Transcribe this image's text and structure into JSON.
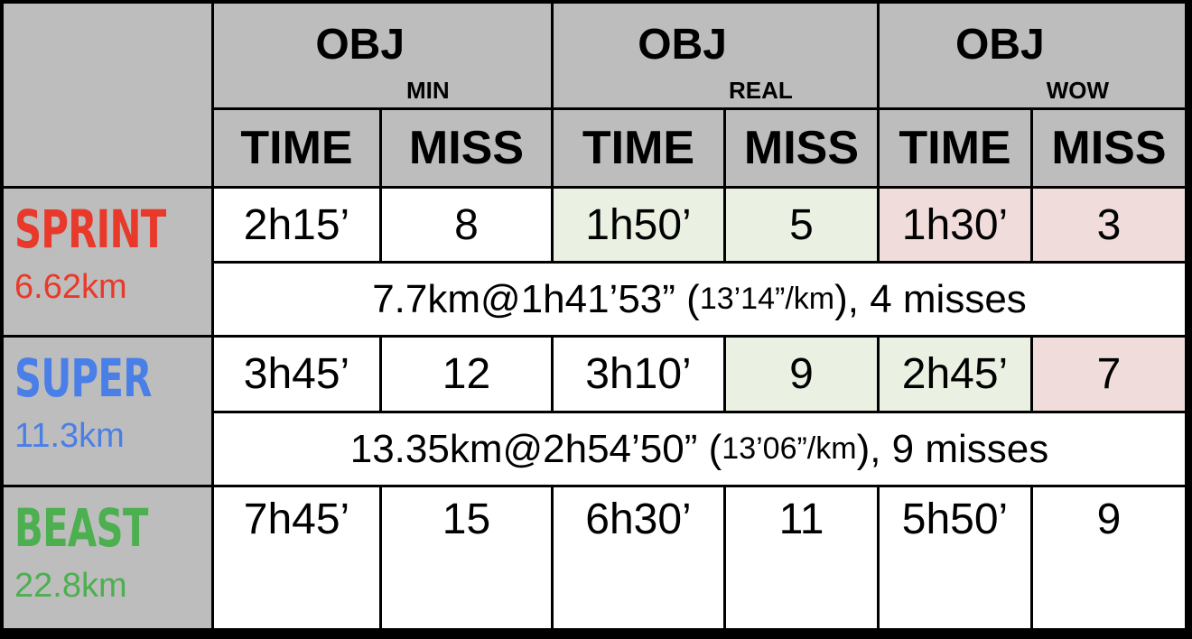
{
  "groups": [
    {
      "main": "OBJ",
      "sub": "MIN"
    },
    {
      "main": "OBJ",
      "sub": "REAL"
    },
    {
      "main": "OBJ",
      "sub": "WOW"
    }
  ],
  "columns": [
    "TIME",
    "MISS",
    "TIME",
    "MISS",
    "TIME",
    "MISS"
  ],
  "races": [
    {
      "name": "SPRINT",
      "distance": "6.62km",
      "color": "#e8392a",
      "cells": [
        "2h15’",
        "8",
        "1h50’",
        "5",
        "1h30’",
        "3"
      ],
      "summary_main": "7.7km@1h41’53” (",
      "summary_pace": "13’14”/km",
      "summary_end": "), 4 misses"
    },
    {
      "name": "SUPER",
      "distance": "11.3km",
      "color": "#4a7fe8",
      "cells": [
        "3h45’",
        "12",
        "3h10’",
        "9",
        "2h45’",
        "7"
      ],
      "summary_main": "13.35km@2h54’50” (",
      "summary_pace": "13’06”/km",
      "summary_end": "), 9 misses"
    },
    {
      "name": "BEAST",
      "distance": "22.8km",
      "color": "#4caf50",
      "cells": [
        "7h45’",
        "15",
        "6h30’",
        "11",
        "5h50’",
        "9"
      ]
    }
  ],
  "highlight_colors": {
    "green": "#eaf1e2",
    "pink": "#f1dcdc"
  }
}
